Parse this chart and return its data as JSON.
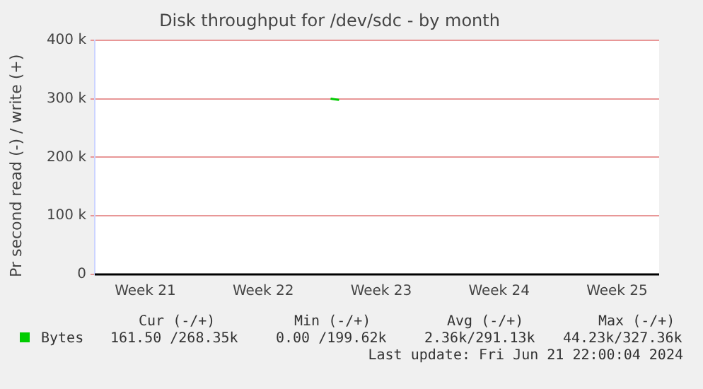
{
  "chart_data": {
    "type": "line",
    "title": "Disk throughput for /dev/sdc - by month",
    "ylabel": "Pr second read (-) / write (+)",
    "categories": [
      null,
      null,
      null,
      null,
      null,
      null,
      "Week 21",
      null,
      null,
      null,
      null,
      null,
      null,
      null,
      null,
      null,
      null,
      null,
      null,
      null,
      "Week 22",
      null,
      null,
      null,
      null,
      null,
      null,
      null,
      null,
      null,
      null,
      null,
      null,
      null,
      "Week 23",
      null,
      null,
      null,
      null,
      null,
      null,
      null,
      null,
      null,
      null,
      null,
      null,
      null,
      "Week 24",
      null,
      null,
      null,
      null,
      null,
      null,
      null,
      null,
      null,
      null,
      null,
      null,
      null,
      "Week 25",
      null,
      null,
      null,
      null,
      null
    ],
    "series": [
      {
        "name": "Bytes",
        "color": "#00cc00",
        "values": [
          null,
          null,
          null,
          null,
          null,
          null,
          null,
          null,
          null,
          null,
          null,
          null,
          null,
          null,
          null,
          null,
          null,
          null,
          null,
          null,
          null,
          null,
          null,
          null,
          null,
          null,
          null,
          null,
          300000,
          298000,
          null,
          null,
          null,
          null,
          null,
          null,
          null,
          null,
          null,
          null,
          null,
          null,
          null,
          null,
          null,
          null,
          null,
          null,
          null,
          null,
          null,
          null,
          null,
          null,
          null,
          null,
          null,
          null,
          null,
          null,
          null,
          null,
          null,
          null,
          null,
          null,
          null,
          null
        ]
      }
    ],
    "ylim": [
      0,
      400000
    ],
    "yticks": [
      {
        "value": 0,
        "label": "0"
      },
      {
        "value": 100000,
        "label": "100 k"
      },
      {
        "value": 200000,
        "label": "200 k"
      },
      {
        "value": 300000,
        "label": "300 k"
      },
      {
        "value": 400000,
        "label": "400 k"
      }
    ],
    "grid": true,
    "legend": "bottom",
    "marker": "none",
    "annotations": [
      "Cur (-/+)",
      "Min (-/+)",
      "Avg (-/+)",
      "Max (-/+)",
      "161.50 /268.35k",
      "0.00 /199.62k",
      "2.36k/291.13k",
      "44.23k/327.36k",
      "Last update: Fri Jun 21 22:00:04 2024"
    ]
  }
}
